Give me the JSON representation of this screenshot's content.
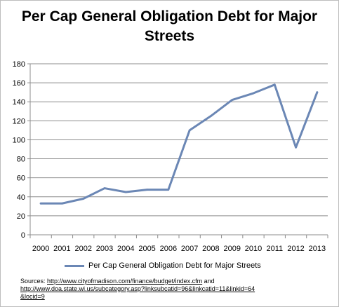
{
  "chart_data": {
    "type": "line",
    "title": "Per Cap General Obligation Debt for Major Streets",
    "x": [
      "2000",
      "2001",
      "2002",
      "2003",
      "2004",
      "2005",
      "2006",
      "2007",
      "2008",
      "2009",
      "2010",
      "2011",
      "2012",
      "2013"
    ],
    "series": [
      {
        "name": "Per Cap General Obligation Debt for Major Streets",
        "values": [
          33,
          33,
          38,
          49,
          45,
          47.5,
          47.5,
          110,
          125,
          142,
          149,
          158,
          92,
          150
        ],
        "color": "#6b87b5"
      }
    ],
    "ylim": [
      0,
      180
    ],
    "yticks": [
      0,
      20,
      40,
      60,
      80,
      100,
      120,
      140,
      160,
      180
    ],
    "grid": true,
    "legend": "bottom"
  },
  "sources": {
    "prefix": "Sources: ",
    "url1": "http://www.cityofmadison.com/finance/budget/index.cfm",
    "and": " and",
    "url2_line1": "http://www.doa.state.wi.us/subcategory.asp?linksubcatid=96&linkcatid=11&linkid=64",
    "url2_line2": "&locid=9"
  }
}
